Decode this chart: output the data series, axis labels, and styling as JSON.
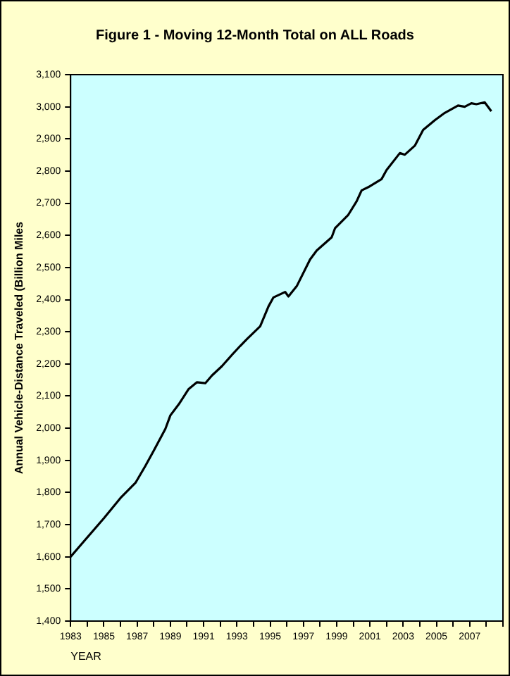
{
  "chart_data": {
    "type": "line",
    "title": "Figure 1 - Moving 12-Month Total on ALL Roads",
    "xlabel": "YEAR",
    "ylabel": "Annual Vehicle-Distance Traveled (Billion Miles",
    "x": [
      1983.0,
      1983.9,
      1985.0,
      1986.0,
      1986.9,
      1987.5,
      1988.0,
      1988.7,
      1989.0,
      1989.5,
      1990.1,
      1990.6,
      1991.1,
      1991.5,
      1992.1,
      1992.7,
      1993.2,
      1993.6,
      1994.4,
      1994.9,
      1995.2,
      1995.9,
      1996.1,
      1996.6,
      1997.4,
      1997.8,
      1998.7,
      1998.9,
      1999.7,
      2000.2,
      2000.5,
      2000.9,
      2001.7,
      2002.0,
      2002.8,
      2003.1,
      2003.7,
      2004.2,
      2004.9,
      2005.5,
      2006.3,
      2006.7,
      2007.1,
      2007.4,
      2007.9,
      2008.3
    ],
    "series": [
      {
        "color": "#000000",
        "values": [
          1600,
          1654,
          1720,
          1783,
          1830,
          1883,
          1930,
          1998,
          2040,
          2074,
          2122,
          2143,
          2140,
          2164,
          2193,
          2228,
          2256,
          2277,
          2317,
          2379,
          2407,
          2424,
          2410,
          2442,
          2525,
          2553,
          2594,
          2622,
          2664,
          2706,
          2740,
          2750,
          2775,
          2803,
          2856,
          2851,
          2879,
          2928,
          2958,
          2981,
          3004,
          3000,
          3011,
          3008,
          3014,
          2986
        ]
      }
    ],
    "xlim": [
      1983,
      2009
    ],
    "xticks": [
      1983,
      {
        "value": 1984,
        "label": null
      },
      1985,
      {
        "value": 1986,
        "label": null
      },
      1987,
      {
        "value": 1988,
        "label": null
      },
      1989,
      {
        "value": 1990,
        "label": null
      },
      1991,
      {
        "value": 1992,
        "label": null
      },
      1993,
      {
        "value": 1994,
        "label": null
      },
      1995,
      {
        "value": 1996,
        "label": null
      },
      1997,
      {
        "value": 1998,
        "label": null
      },
      1999,
      {
        "value": 2000,
        "label": null
      },
      2001,
      {
        "value": 2002,
        "label": null
      },
      2003,
      {
        "value": 2004,
        "label": null
      },
      2005,
      {
        "value": 2006,
        "label": null
      },
      2007,
      {
        "value": 2008,
        "label": null
      },
      {
        "value": 2009,
        "label": null
      }
    ],
    "ylim": [
      1400,
      3100
    ],
    "yticks": [
      {
        "value": 1400,
        "label": "1,400"
      },
      {
        "value": 1500,
        "label": "1,500"
      },
      {
        "value": 1600,
        "label": "1,600"
      },
      {
        "value": 1700,
        "label": "1,700"
      },
      {
        "value": 1800,
        "label": "1,800"
      },
      {
        "value": 1900,
        "label": "1,900"
      },
      {
        "value": 2000,
        "label": "2,000"
      },
      {
        "value": 2100,
        "label": "2,100"
      },
      {
        "value": 2200,
        "label": "2,200"
      },
      {
        "value": 2300,
        "label": "2,300"
      },
      {
        "value": 2400,
        "label": "2,400"
      },
      {
        "value": 2500,
        "label": "2,500"
      },
      {
        "value": 2600,
        "label": "2,600"
      },
      {
        "value": 2700,
        "label": "2,700"
      },
      {
        "value": 2800,
        "label": "2,800"
      },
      {
        "value": 2900,
        "label": "2,900"
      },
      {
        "value": 3000,
        "label": "3,000"
      },
      {
        "value": 3100,
        "label": "3,100"
      }
    ],
    "grid": false,
    "legend": false,
    "marker": "none",
    "line_style": "solid"
  }
}
